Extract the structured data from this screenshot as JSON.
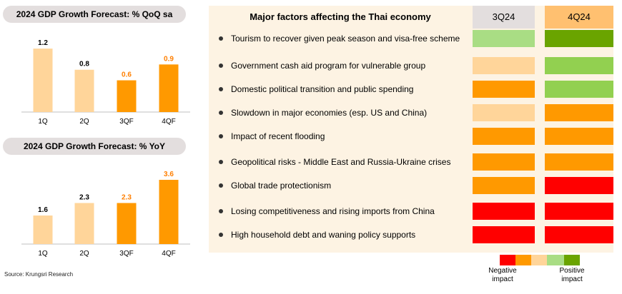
{
  "colors": {
    "panel_bg": "#fdf3e3",
    "title_pill": "#e3dede",
    "bar_light": "#ffd59a",
    "bar_orange": "#ff9900",
    "label_orange": "#ff7f00",
    "dark_red": "#ff0000",
    "orange": "#ff9900",
    "light_orange": "#ffd59a",
    "light_green": "#a9dd84",
    "green": "#92d050",
    "dark_green": "#6aa400"
  },
  "chart_data": [
    {
      "type": "bar",
      "title": "2024 GDP Growth Forecast: % QoQ sa",
      "categories": [
        "1Q",
        "2Q",
        "3QF",
        "4QF"
      ],
      "values": [
        1.2,
        0.8,
        0.6,
        0.9
      ],
      "value_labels": [
        "1.2",
        "0.8",
        "0.6",
        "0.9"
      ],
      "forecast_flags": [
        false,
        false,
        true,
        true
      ],
      "ylim": [
        0,
        1.35
      ]
    },
    {
      "type": "bar",
      "title": "2024 GDP Growth Forecast: % YoY",
      "categories": [
        "1Q",
        "2Q",
        "3QF",
        "4QF"
      ],
      "values": [
        1.6,
        2.3,
        2.3,
        3.6
      ],
      "value_labels": [
        "1.6",
        "2.3",
        "2.3",
        "3.6"
      ],
      "forecast_flags": [
        false,
        false,
        true,
        true
      ],
      "ylim": [
        0,
        4.0
      ]
    },
    {
      "type": "table",
      "title": "Major factors affecting the Thai economy",
      "columns": [
        "3Q24",
        "4Q24"
      ],
      "rows": [
        {
          "label": "Tourism to recover given peak season and visa-free scheme",
          "q3": "light_green",
          "q4": "dark_green"
        },
        {
          "label": "Government cash aid program for vulnerable group",
          "q3": "light_orange",
          "q4": "green"
        },
        {
          "label": "Domestic political transition and public spending",
          "q3": "orange",
          "q4": "green"
        },
        {
          "label": "Slowdown in major economies  (esp. US and China)",
          "q3": "light_orange",
          "q4": "orange"
        },
        {
          "label": "Impact of recent flooding",
          "q3": "orange",
          "q4": "orange"
        },
        {
          "label": "Geopolitical risks - Middle East and Russia-Ukraine crises",
          "q3": "orange",
          "q4": "orange"
        },
        {
          "label": "Global trade protectionism",
          "q3": "orange",
          "q4": "dark_red"
        },
        {
          "label": "Losing competitiveness and rising imports from China",
          "q3": "dark_red",
          "q4": "dark_red"
        },
        {
          "label": "High household debt and waning policy supports",
          "q3": "dark_red",
          "q4": "dark_red"
        }
      ],
      "legend": {
        "scale": [
          "dark_red",
          "orange",
          "light_orange",
          "light_green",
          "dark_green"
        ],
        "negative_label": "Negative impact",
        "positive_label": "Positive impact"
      }
    }
  ],
  "source": "Source: Krungsri Research"
}
